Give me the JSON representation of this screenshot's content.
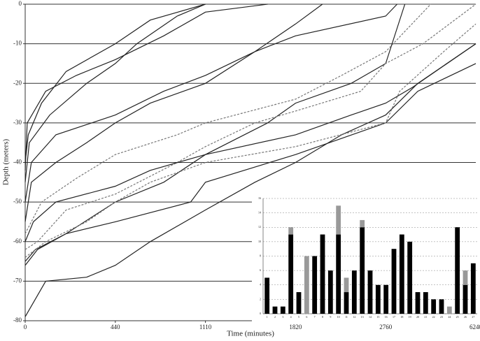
{
  "chart_data": [
    {
      "type": "line",
      "xlabel": "Time (minutes)",
      "ylabel": "Depth (meters)",
      "xlim": [
        0,
        6240
      ],
      "xticks": [
        0,
        440,
        1110,
        1820,
        2760,
        6240
      ],
      "ylim": [
        -80,
        0
      ],
      "yticks": [
        0,
        -10,
        -20,
        -30,
        -40,
        -50,
        -60,
        -70,
        -80
      ],
      "grid": true,
      "series": [
        {
          "color": "#222",
          "dash": false,
          "x": [
            0,
            100,
            300,
            440,
            700,
            1110,
            1500,
            1820,
            2300,
            2760,
            4000,
            6240
          ],
          "values": [
            -79,
            -70,
            -69,
            -66,
            -60,
            -52,
            -45,
            -40,
            -33,
            -28,
            -20,
            -10
          ]
        },
        {
          "color": "#222",
          "dash": false,
          "x": [
            0,
            50,
            200,
            440,
            800,
            1110,
            1600,
            1820,
            2400,
            2760,
            3500
          ],
          "values": [
            -65,
            -62,
            -58,
            -50,
            -45,
            -38,
            -30,
            -25,
            -20,
            -15,
            0
          ]
        },
        {
          "color": "#222",
          "dash": false,
          "x": [
            0,
            30,
            150,
            300,
            440,
            700,
            1110,
            1500,
            1820,
            2100
          ],
          "values": [
            -55,
            -45,
            -40,
            -35,
            -30,
            -25,
            -20,
            -12,
            -5,
            0
          ]
        },
        {
          "color": "#777",
          "dash": true,
          "x": [
            0,
            60,
            200,
            440,
            900,
            1110,
            1500,
            1820,
            2500,
            2760,
            4200,
            6240
          ],
          "values": [
            -62,
            -60,
            -52,
            -48,
            -40,
            -36,
            -30,
            -27,
            -22,
            -15,
            -10,
            0
          ]
        },
        {
          "color": "#222",
          "dash": false,
          "x": [
            0,
            20,
            120,
            300,
            440,
            600,
            900,
            1110
          ],
          "values": [
            -45,
            -35,
            -28,
            -20,
            -15,
            -10,
            -3,
            0
          ]
        },
        {
          "color": "#222",
          "dash": false,
          "x": [
            0,
            40,
            150,
            440,
            700,
            1110,
            1820,
            2400,
            2760,
            3800,
            6240
          ],
          "values": [
            -60,
            -55,
            -50,
            -46,
            -42,
            -38,
            -33,
            -28,
            -25,
            -21,
            -10
          ]
        },
        {
          "color": "#777",
          "dash": true,
          "x": [
            0,
            80,
            250,
            440,
            900,
            1110,
            1820,
            2300,
            2760,
            4500
          ],
          "values": [
            -58,
            -50,
            -44,
            -38,
            -33,
            -30,
            -24,
            -18,
            -12,
            0
          ]
        },
        {
          "color": "#222",
          "dash": false,
          "x": [
            0,
            10,
            100,
            250,
            440,
            800,
            1110,
            1600
          ],
          "values": [
            -42,
            -30,
            -22,
            -18,
            -14,
            -8,
            -2,
            0
          ]
        },
        {
          "color": "#222",
          "dash": false,
          "x": [
            0,
            60,
            200,
            440,
            1000,
            1110,
            1820,
            2760,
            4000,
            6240
          ],
          "values": [
            -66,
            -62,
            -58,
            -55,
            -50,
            -45,
            -38,
            -30,
            -22,
            -15
          ]
        },
        {
          "color": "#222",
          "dash": false,
          "x": [
            0,
            30,
            150,
            440,
            800,
            1110,
            1500,
            1820,
            2760,
            3200
          ],
          "values": [
            -50,
            -40,
            -33,
            -28,
            -22,
            -18,
            -12,
            -8,
            -3,
            0
          ]
        },
        {
          "color": "#777",
          "dash": true,
          "x": [
            0,
            100,
            300,
            440,
            700,
            1110,
            1820,
            2760,
            3300,
            5000,
            6240
          ],
          "values": [
            -64,
            -60,
            -55,
            -50,
            -45,
            -40,
            -36,
            -30,
            -22,
            -12,
            -5
          ]
        },
        {
          "color": "#222",
          "dash": false,
          "x": [
            0,
            15,
            80,
            200,
            440,
            700,
            1110
          ],
          "values": [
            -40,
            -33,
            -25,
            -17,
            -10,
            -4,
            0
          ]
        }
      ]
    },
    {
      "type": "bar",
      "categories": [
        "1",
        "2",
        "3",
        "4",
        "5",
        "6",
        "7",
        "8",
        "9",
        "10",
        "11",
        "12",
        "13",
        "14",
        "15",
        "16",
        "17",
        "18",
        "19",
        "20",
        "21",
        "22",
        "23",
        "24",
        "25",
        "26",
        "27"
      ],
      "ylim": [
        0,
        16
      ],
      "yticks": [
        0,
        2,
        4,
        6,
        8,
        10,
        12,
        14,
        16
      ],
      "grid": true,
      "series": [
        {
          "color": "#000",
          "values": [
            5,
            1,
            1,
            11,
            3,
            0,
            8,
            11,
            6,
            11,
            3,
            6,
            12,
            6,
            4,
            4,
            9,
            11,
            10,
            3,
            3,
            2,
            2,
            0,
            12,
            4,
            7
          ]
        },
        {
          "color": "#999",
          "values": [
            0,
            0,
            0,
            1,
            0,
            8,
            0,
            0,
            0,
            4,
            2,
            0,
            1,
            0,
            0,
            0,
            0,
            0,
            0,
            0,
            0,
            0,
            0,
            1,
            0,
            2,
            0
          ]
        }
      ]
    }
  ]
}
